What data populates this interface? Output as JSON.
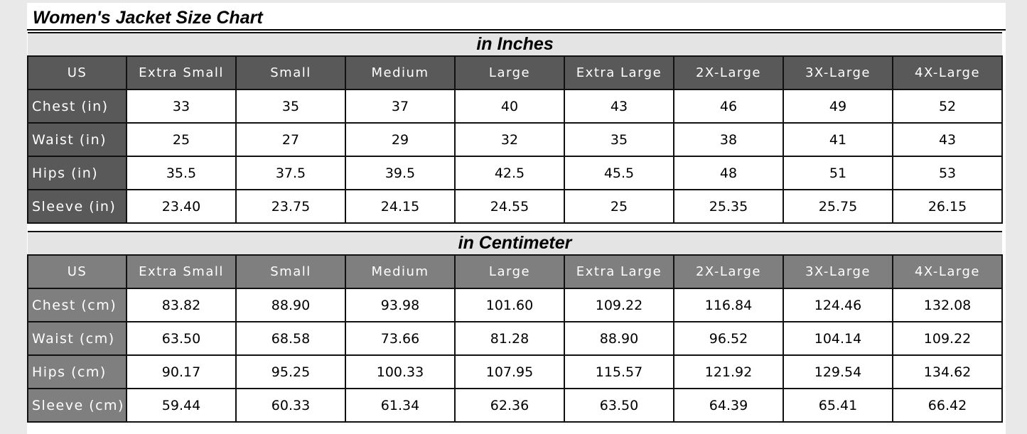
{
  "title": "Women's Jacket Size Chart",
  "colors": {
    "inches_header": "#595959",
    "cm_header": "#7f7f7f",
    "section_band": "#e4e4e4"
  },
  "sections": [
    {
      "heading": "in Inches",
      "columns": [
        "US",
        "Extra Small",
        "Small",
        "Medium",
        "Large",
        "Extra Large",
        "2X-Large",
        "3X-Large",
        "4X-Large"
      ],
      "rows": [
        {
          "label": "Chest (in)",
          "values": [
            "33",
            "35",
            "37",
            "40",
            "43",
            "46",
            "49",
            "52"
          ]
        },
        {
          "label": "Waist (in)",
          "values": [
            "25",
            "27",
            "29",
            "32",
            "35",
            "38",
            "41",
            "43"
          ]
        },
        {
          "label": "Hips (in)",
          "values": [
            "35.5",
            "37.5",
            "39.5",
            "42.5",
            "45.5",
            "48",
            "51",
            "53"
          ]
        },
        {
          "label": "Sleeve (in)",
          "values": [
            "23.40",
            "23.75",
            "24.15",
            "24.55",
            "25",
            "25.35",
            "25.75",
            "26.15"
          ]
        }
      ]
    },
    {
      "heading": "in Centimeter",
      "columns": [
        "US",
        "Extra Small",
        "Small",
        "Medium",
        "Large",
        "Extra Large",
        "2X-Large",
        "3X-Large",
        "4X-Large"
      ],
      "rows": [
        {
          "label": "Chest (cm)",
          "values": [
            "83.82",
            "88.90",
            "93.98",
            "101.60",
            "109.22",
            "116.84",
            "124.46",
            "132.08"
          ]
        },
        {
          "label": "Waist (cm)",
          "values": [
            "63.50",
            "68.58",
            "73.66",
            "81.28",
            "88.90",
            "96.52",
            "104.14",
            "109.22"
          ]
        },
        {
          "label": "Hips (cm)",
          "values": [
            "90.17",
            "95.25",
            "100.33",
            "107.95",
            "115.57",
            "121.92",
            "129.54",
            "134.62"
          ]
        },
        {
          "label": "Sleeve (cm)",
          "values": [
            "59.44",
            "60.33",
            "61.34",
            "62.36",
            "63.50",
            "64.39",
            "65.41",
            "66.42"
          ]
        }
      ]
    }
  ]
}
